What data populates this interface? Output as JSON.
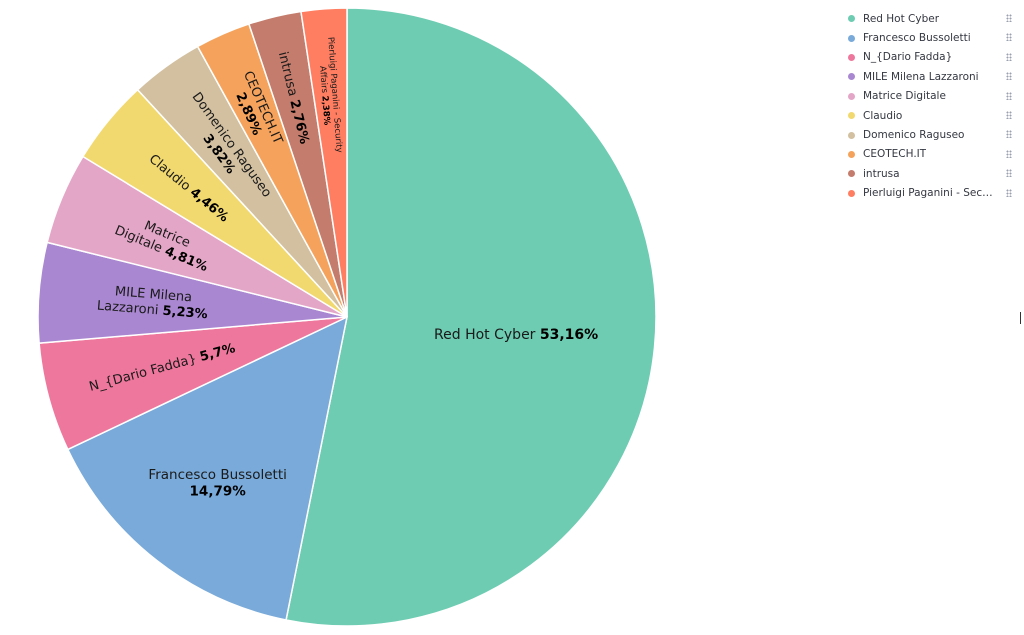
{
  "chart_data": {
    "type": "pie",
    "title": "",
    "legend_position": "top-right",
    "slices": [
      {
        "name": "Red Hot Cyber",
        "value": 53.16,
        "label": "53,16%",
        "color": "#6dccb1"
      },
      {
        "name": "Francesco Bussoletti",
        "value": 14.79,
        "label": "14,79%",
        "color": "#79aad9"
      },
      {
        "name": "N_{Dario Fadda}",
        "value": 5.7,
        "label": "5,7%",
        "color": "#ee789d"
      },
      {
        "name": "MILE Milena Lazzaroni",
        "value": 5.23,
        "label": "5,23%",
        "color": "#a987d1"
      },
      {
        "name": "Matrice Digitale",
        "value": 4.81,
        "label": "4,81%",
        "color": "#e4a6c7"
      },
      {
        "name": "Claudio",
        "value": 4.46,
        "label": "4,46%",
        "color": "#f1d86f"
      },
      {
        "name": "Domenico Raguseo",
        "value": 3.82,
        "label": "3,82%",
        "color": "#d2c0a0"
      },
      {
        "name": "CEOTECH.IT",
        "value": 2.89,
        "label": "2,89%",
        "color": "#f5a35c"
      },
      {
        "name": "intrusa",
        "value": 2.76,
        "label": "2,76%",
        "color": "#c47c6c"
      },
      {
        "name": "Pierluigi Paganini - Security Affairs",
        "value": 2.38,
        "label": "2,38%",
        "color": "#ff7e62"
      }
    ]
  },
  "legend": {
    "items": [
      {
        "label": "Red Hot Cyber",
        "color": "#6dccb1"
      },
      {
        "label": "Francesco Bussoletti",
        "color": "#79aad9"
      },
      {
        "label": "N_{Dario Fadda}",
        "color": "#ee789d"
      },
      {
        "label": "MILE Milena Lazzaroni",
        "color": "#a987d1"
      },
      {
        "label": "Matrice Digitale",
        "color": "#e4a6c7"
      },
      {
        "label": "Claudio",
        "color": "#f1d86f"
      },
      {
        "label": "Domenico Raguseo",
        "color": "#d2c0a0"
      },
      {
        "label": "CEOTECH.IT",
        "color": "#f5a35c"
      },
      {
        "label": "intrusa",
        "color": "#c47c6c"
      },
      {
        "label": "Pierluigi Paganini - Secu...",
        "color": "#ff7e62"
      }
    ]
  }
}
